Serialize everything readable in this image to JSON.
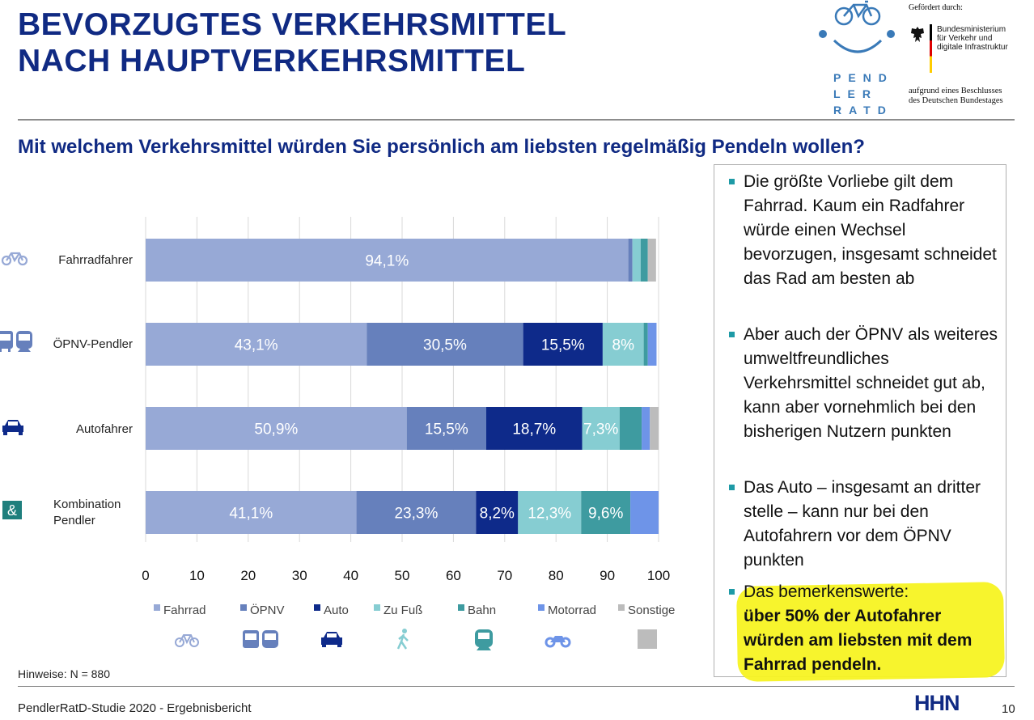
{
  "header": {
    "title_line1": "BEVORZUGTES VERKEHRSMITTEL",
    "title_line2": "NACH HAUPTVERKEHRSMITTEL",
    "question": "Mit welchem Verkehrsmittel würden Sie persönlich am liebsten regelmäßig Pendeln wollen?"
  },
  "logo": {
    "line1": "PEND",
    "line2": "LER",
    "line3": "RATD",
    "sponsor_label": "Gefördert durch:",
    "ministry_line1": "Bundesministerium",
    "ministry_line2": "für Verkehr und",
    "ministry_line3": "digitale Infrastruktur",
    "bundestag_line1": "aufgrund eines Beschlusses",
    "bundestag_line2": "des Deutschen Bundestages"
  },
  "chart_data": {
    "type": "bar",
    "orientation": "horizontal",
    "stacked": true,
    "title": "Mit welchem Verkehrsmittel würden Sie persönlich am liebsten regelmäßig Pendeln wollen?",
    "xlabel": "",
    "ylabel": "",
    "xlim": [
      0,
      100
    ],
    "xticks": [
      "0",
      "10",
      "20",
      "30",
      "40",
      "50",
      "60",
      "70",
      "80",
      "90",
      "100"
    ],
    "grid": true,
    "legend_position": "bottom",
    "categories": [
      "Fahrradfahrer",
      "ÖPNV-Pendler",
      "Autofahrer",
      "Kombination Pendler"
    ],
    "category_icons": [
      "bicycle-icon",
      "bus-train-icon",
      "car-icon",
      "ampersand-icon"
    ],
    "series": [
      {
        "name": "Fahrrad",
        "color": "#97a9d6",
        "icon": "bicycle-icon",
        "values": [
          94.1,
          43.1,
          50.9,
          41.1
        ],
        "labels": [
          "94,1%",
          "43,1%",
          "50,9%",
          "41,1%"
        ]
      },
      {
        "name": "ÖPNV",
        "color": "#6680bc",
        "icon": "bus-train-icon",
        "values": [
          0.8,
          30.5,
          15.5,
          23.3
        ],
        "labels": [
          "",
          "30,5%",
          "15,5%",
          "23,3%"
        ]
      },
      {
        "name": "Auto",
        "color": "#0e2a8a",
        "icon": "car-icon",
        "values": [
          0,
          15.5,
          18.7,
          8.2
        ],
        "labels": [
          "",
          "15,5%",
          "18,7%",
          "8,2%"
        ]
      },
      {
        "name": "Zu Fuß",
        "color": "#86cdd2",
        "icon": "walking-icon",
        "values": [
          1.6,
          8.0,
          7.3,
          12.3
        ],
        "labels": [
          "",
          "8%",
          "7,3%",
          "12,3%"
        ]
      },
      {
        "name": "Bahn",
        "color": "#3e9ba0",
        "icon": "train-icon",
        "values": [
          1.4,
          0.8,
          4.3,
          9.6
        ],
        "labels": [
          "",
          "",
          "",
          "9,6%"
        ]
      },
      {
        "name": "Motorrad",
        "color": "#6e94e8",
        "icon": "motorcycle-icon",
        "values": [
          0,
          1.7,
          1.6,
          5.5
        ],
        "labels": [
          "",
          "",
          "",
          ""
        ]
      },
      {
        "name": "Sonstige",
        "color": "#bcbcbc",
        "icon": "square-icon",
        "values": [
          1.6,
          0,
          1.7,
          0
        ],
        "labels": [
          "",
          "",
          "",
          ""
        ]
      }
    ]
  },
  "chart_labels": {
    "row0": "Fahrradfahrer",
    "row1": "ÖPNV-Pendler",
    "row2": "Autofahrer",
    "row3_line1": "Kombination",
    "row3_line2": "Pendler"
  },
  "textbox": {
    "bullets": [
      {
        "text": "Die größte Vorliebe gilt dem Fahrrad. Kaum ein Radfahrer würde einen Wechsel bevorzugen, insgesamt schneidet das Rad am besten ab"
      },
      {
        "text": "Aber auch der ÖPNV als weiteres umweltfreundliches Verkehrsmittel schneidet gut ab, kann aber vornehmlich bei den bisherigen Nutzern punkten"
      },
      {
        "text": "Das Auto – insgesamt an dritter stelle – kann nur bei den Autofahrern vor dem ÖPNV punkten"
      },
      {
        "text": "Das bemerkenswerte:",
        "bold": "über 50% der Autofahrer würden am liebsten mit dem Fahrrad pendeln."
      }
    ]
  },
  "footer": {
    "note": "Hinweise: N = 880",
    "report": "PendlerRatD-Studie 2020 - Ergebnisbericht",
    "institution_logo": "HHN",
    "page_number": "10"
  }
}
